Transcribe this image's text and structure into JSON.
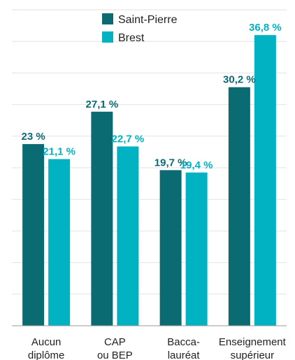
{
  "chart_data": {
    "type": "bar",
    "title": "",
    "xlabel": "",
    "ylabel": "",
    "categories": [
      [
        "Aucun",
        "diplôme"
      ],
      [
        "CAP",
        "ou BEP"
      ],
      [
        "Bacca-",
        "lauréat"
      ],
      [
        "Enseignement",
        "supérieur"
      ]
    ],
    "series": [
      {
        "name": "Saint-Pierre",
        "color": "#0b6b73",
        "values": [
          23,
          27.1,
          19.7,
          30.2
        ],
        "labels": [
          "23 %",
          "27,1 %",
          "19,7 %",
          "30,2 %"
        ]
      },
      {
        "name": "Brest",
        "color": "#00b2c2",
        "values": [
          21.1,
          22.7,
          19.4,
          36.8
        ],
        "labels": [
          "21,1 %",
          "22,7 %",
          "19,4 %",
          "36,8 %"
        ]
      }
    ],
    "ylim": [
      0,
      40
    ],
    "gridlines": true,
    "gridline_step": 4,
    "legend_position": "top-center"
  }
}
